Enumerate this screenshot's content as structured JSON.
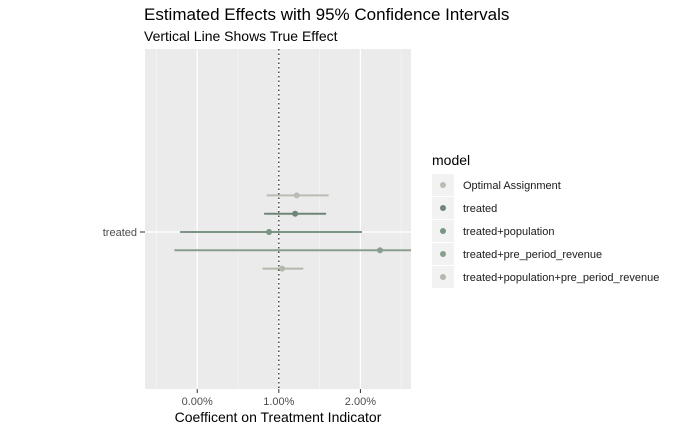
{
  "chart_data": {
    "type": "scatter",
    "title": "Estimated Effects with 95% Confidence Intervals",
    "subtitle": "Vertical Line Shows True Effect",
    "xlabel": "Coefficent on Treatment Indicator",
    "ylabel": "",
    "y_category": "treated",
    "x_ticks": [
      {
        "value": 0.0,
        "label": "0.00%"
      },
      {
        "value": 0.01,
        "label": "1.00%"
      },
      {
        "value": 0.02,
        "label": "2.00%"
      }
    ],
    "xlim": [
      -0.0064,
      0.0262
    ],
    "true_effect": 0.01,
    "grid": true,
    "legend_title": "model",
    "legend_position": "right",
    "series": [
      {
        "name": "Optimal Assignment",
        "estimate": 0.0122,
        "ci": [
          0.0085,
          0.0161
        ],
        "color": "#b9bdb3",
        "offset": 2
      },
      {
        "name": "treated",
        "estimate": 0.012,
        "ci": [
          0.0082,
          0.0158
        ],
        "color": "#6f8577",
        "offset": 1
      },
      {
        "name": "treated+population",
        "estimate": 0.0088,
        "ci": [
          -0.0021,
          0.0202
        ],
        "color": "#7b9484",
        "offset": 0
      },
      {
        "name": "treated+pre_period_revenue",
        "estimate": 0.0224,
        "ci": [
          -0.0028,
          0.0262
        ],
        "color": "#8a9e90",
        "offset": -1
      },
      {
        "name": "treated+population+pre_period_revenue",
        "estimate": 0.0104,
        "ci": [
          0.008,
          0.013
        ],
        "color": "#b2b8ac",
        "offset": -2
      }
    ]
  }
}
